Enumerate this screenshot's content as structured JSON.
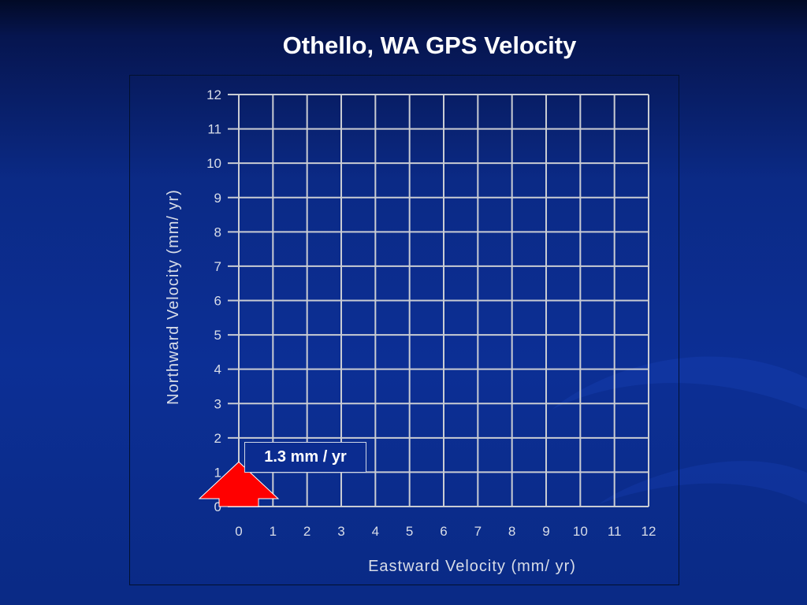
{
  "slide": {
    "title": "Othello, WA GPS Velocity",
    "vector_label": "1.3 mm / yr"
  },
  "colors": {
    "background": "#0b2a86",
    "grid": "#c9ccd3",
    "text": "#ffffff",
    "arrow": "#ff0000"
  },
  "chart_data": {
    "type": "scatter",
    "xlabel": "Eastward Velocity (mm/ yr)",
    "ylabel": "Northward Velocity (mm/ yr)",
    "xlim": [
      0,
      12
    ],
    "ylim": [
      0,
      12
    ],
    "xticks": [
      "0",
      "1",
      "2",
      "3",
      "4",
      "5",
      "6",
      "7",
      "8",
      "9",
      "10",
      "11",
      "12"
    ],
    "yticks": [
      "0",
      "1",
      "2",
      "3",
      "4",
      "5",
      "6",
      "7",
      "8",
      "9",
      "10",
      "11",
      "12"
    ],
    "grid": true,
    "vectors": [
      {
        "x": 0,
        "y": 0,
        "magnitude_mm_per_yr": 1.3,
        "direction": "north"
      }
    ]
  }
}
